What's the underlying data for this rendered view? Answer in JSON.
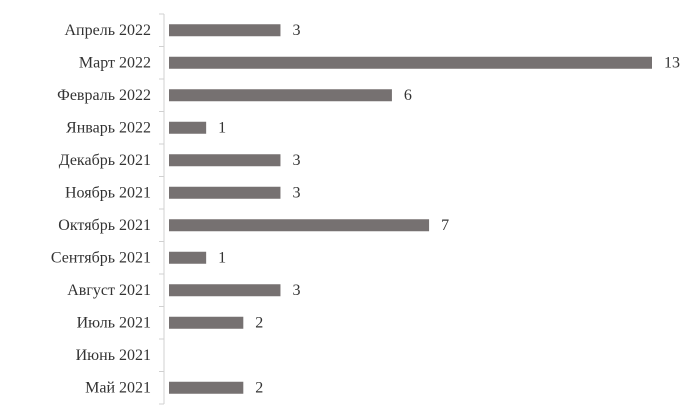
{
  "chart_data": {
    "type": "barh",
    "categories": [
      "Апрель 2022",
      "Март 2022",
      "Февраль 2022",
      "Январь 2022",
      "Декабрь 2021",
      "Ноябрь 2021",
      "Октябрь 2021",
      "Сентябрь 2021",
      "Август 2021",
      "Июль 2021",
      "Июнь 2021",
      "Май 2021"
    ],
    "values": [
      3,
      13,
      6,
      1,
      3,
      3,
      7,
      1,
      3,
      2,
      null,
      2
    ],
    "color": "#767171"
  }
}
